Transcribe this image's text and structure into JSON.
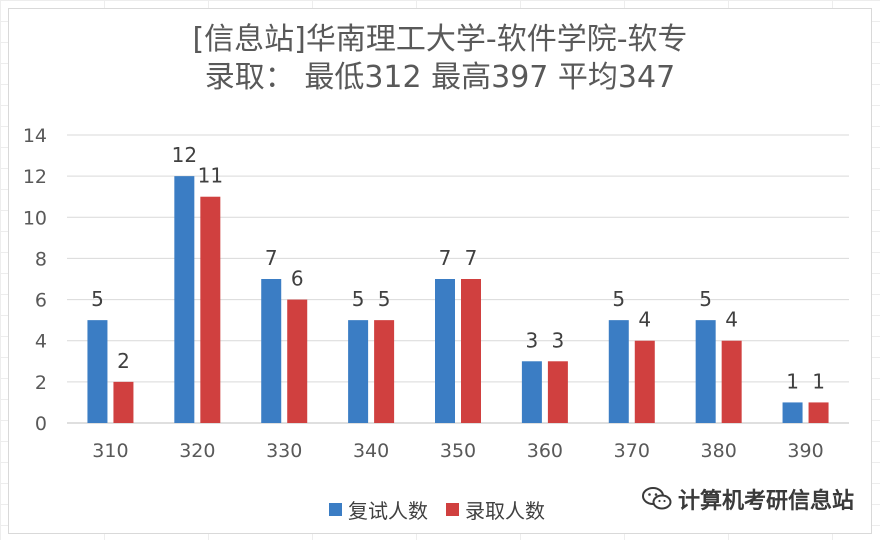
{
  "chart_data": {
    "type": "bar",
    "title_line1": "[信息站]华南理工大学-软件学院-软专",
    "title_line2": "录取： 最低312 最高397 平均347",
    "categories": [
      "310",
      "320",
      "330",
      "340",
      "350",
      "360",
      "370",
      "380",
      "390"
    ],
    "series": [
      {
        "name": "复试人数",
        "values": [
          5,
          12,
          7,
          5,
          7,
          3,
          5,
          5,
          1
        ],
        "color": "#3b7dc4"
      },
      {
        "name": "录取人数",
        "values": [
          2,
          11,
          6,
          5,
          7,
          3,
          4,
          4,
          1
        ],
        "color": "#d0403f"
      }
    ],
    "yticks": [
      "0",
      "2",
      "4",
      "6",
      "8",
      "10",
      "12",
      "14"
    ],
    "ylim": [
      0,
      14
    ],
    "grid": true,
    "legend_position": "bottom"
  },
  "watermark": {
    "text": "计算机考研信息站",
    "icon": "wechat-icon"
  }
}
